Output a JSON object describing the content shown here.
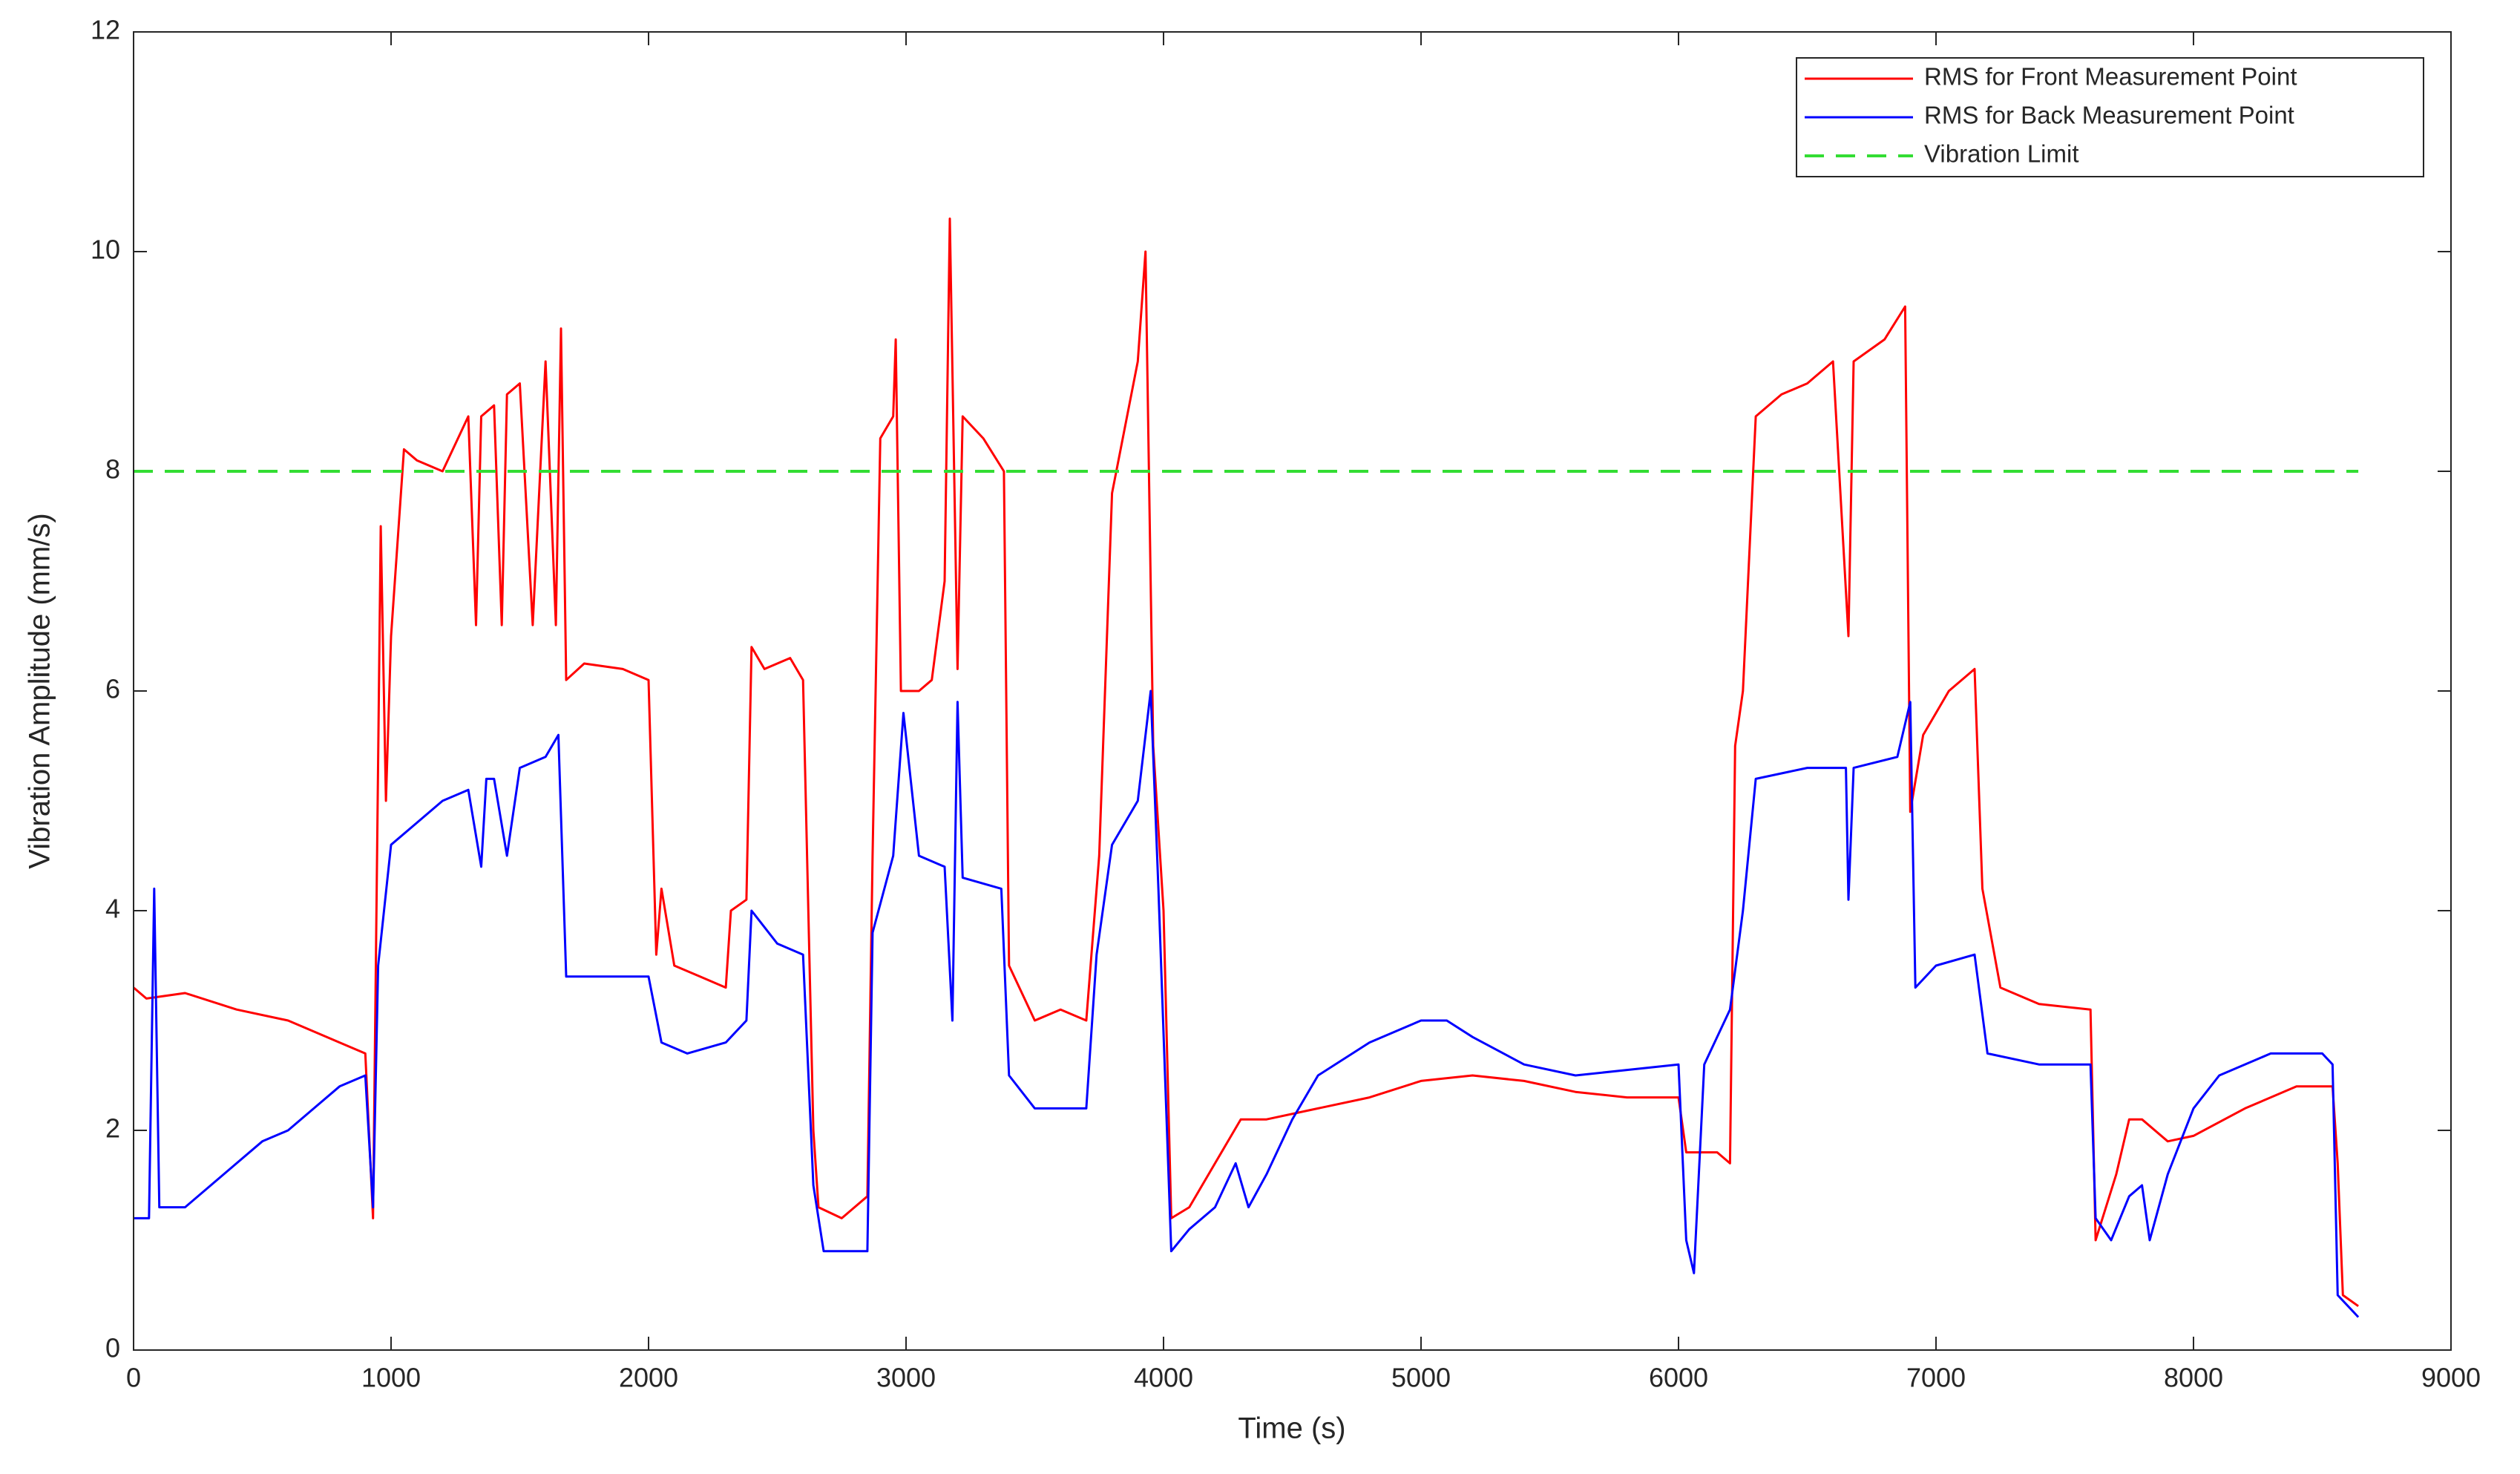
{
  "chart_data": {
    "type": "line",
    "xlabel": "Time (s)",
    "ylabel": "Vibration Amplitude (mm/s)",
    "xlim": [
      0,
      9000
    ],
    "xticks": [
      0,
      1000,
      2000,
      3000,
      4000,
      5000,
      6000,
      7000,
      8000,
      9000
    ],
    "ylim": [
      0,
      12
    ],
    "yticks": [
      0,
      2,
      4,
      6,
      8,
      10,
      12
    ],
    "grid": false,
    "legend": "upper right",
    "series": [
      {
        "name": "RMS for Front Measurement Point",
        "color": "#ff0000",
        "linestyle": "solid",
        "x": [
          0,
          50,
          200,
          400,
          600,
          800,
          900,
          930,
          960,
          980,
          1000,
          1050,
          1100,
          1200,
          1300,
          1330,
          1350,
          1400,
          1430,
          1450,
          1500,
          1550,
          1600,
          1640,
          1660,
          1680,
          1750,
          1900,
          2000,
          2030,
          2050,
          2100,
          2200,
          2300,
          2320,
          2380,
          2400,
          2450,
          2550,
          2600,
          2640,
          2660,
          2750,
          2850,
          2870,
          2900,
          2950,
          2960,
          2980,
          3050,
          3100,
          3150,
          3170,
          3200,
          3220,
          3300,
          3380,
          3400,
          3500,
          3600,
          3700,
          3750,
          3800,
          3900,
          3930,
          3960,
          4000,
          4030,
          4100,
          4200,
          4300,
          4400,
          4600,
          4800,
          5000,
          5200,
          5400,
          5600,
          5800,
          6000,
          6030,
          6150,
          6200,
          6220,
          6250,
          6300,
          6400,
          6500,
          6600,
          6660,
          6680,
          6800,
          6880,
          6900,
          6950,
          7050,
          7150,
          7180,
          7250,
          7400,
          7600,
          7620,
          7700,
          7750,
          7800,
          7900,
          8000,
          8200,
          8400,
          8500,
          8540,
          8560,
          8580,
          8640
        ],
        "values": [
          3.3,
          3.2,
          3.25,
          3.1,
          3.0,
          2.8,
          2.7,
          1.2,
          7.5,
          5.0,
          6.5,
          8.2,
          8.1,
          8.0,
          8.5,
          6.6,
          8.5,
          8.6,
          6.6,
          8.7,
          8.8,
          6.6,
          9.0,
          6.6,
          9.3,
          6.1,
          6.25,
          6.2,
          6.1,
          3.6,
          4.2,
          3.5,
          3.4,
          3.3,
          4.0,
          4.1,
          6.4,
          6.2,
          6.3,
          6.1,
          2.0,
          1.3,
          1.2,
          1.4,
          4.5,
          8.3,
          8.5,
          9.2,
          6.0,
          6.0,
          6.1,
          7.0,
          10.3,
          6.2,
          8.5,
          8.3,
          8.0,
          3.5,
          3.0,
          3.1,
          3.0,
          4.5,
          7.8,
          9.0,
          10.0,
          5.5,
          4.0,
          1.2,
          1.3,
          1.7,
          2.1,
          2.1,
          2.2,
          2.3,
          2.45,
          2.5,
          2.45,
          2.35,
          2.3,
          2.3,
          1.8,
          1.8,
          1.7,
          5.5,
          6.0,
          8.5,
          8.7,
          8.8,
          9.0,
          6.5,
          9.0,
          9.2,
          9.5,
          4.9,
          5.6,
          6.0,
          6.2,
          4.2,
          3.3,
          3.15,
          3.1,
          1.0,
          1.6,
          2.1,
          2.1,
          1.9,
          1.95,
          2.2,
          2.4,
          2.4,
          2.4,
          1.7,
          0.5,
          0.4
        ]
      },
      {
        "name": "RMS for Back Measurement Point",
        "color": "#0000ff",
        "linestyle": "solid",
        "x": [
          0,
          60,
          80,
          100,
          200,
          300,
          400,
          500,
          600,
          700,
          800,
          900,
          930,
          950,
          1000,
          1100,
          1200,
          1300,
          1350,
          1370,
          1400,
          1450,
          1500,
          1600,
          1650,
          1680,
          1800,
          2000,
          2050,
          2150,
          2300,
          2380,
          2400,
          2500,
          2600,
          2640,
          2680,
          2850,
          2870,
          2950,
          2990,
          3050,
          3150,
          3180,
          3200,
          3220,
          3370,
          3400,
          3500,
          3700,
          3740,
          3800,
          3900,
          3950,
          3980,
          4030,
          4100,
          4200,
          4280,
          4330,
          4400,
          4500,
          4600,
          4800,
          5000,
          5100,
          5200,
          5400,
          5600,
          5800,
          6000,
          6030,
          6060,
          6100,
          6200,
          6250,
          6300,
          6500,
          6650,
          6660,
          6680,
          6850,
          6900,
          6920,
          7000,
          7150,
          7200,
          7400,
          7600,
          7620,
          7680,
          7750,
          7800,
          7830,
          7900,
          8000,
          8100,
          8300,
          8500,
          8540,
          8560,
          8640
        ],
        "values": [
          1.2,
          1.2,
          4.2,
          1.3,
          1.3,
          1.5,
          1.7,
          1.9,
          2.0,
          2.2,
          2.4,
          2.5,
          1.3,
          3.5,
          4.6,
          4.8,
          5.0,
          5.1,
          4.4,
          5.2,
          5.2,
          4.5,
          5.3,
          5.4,
          5.6,
          3.4,
          3.4,
          3.4,
          2.8,
          2.7,
          2.8,
          3.0,
          4.0,
          3.7,
          3.6,
          1.5,
          0.9,
          0.9,
          3.8,
          4.5,
          5.8,
          4.5,
          4.4,
          3.0,
          5.9,
          4.3,
          4.2,
          2.5,
          2.2,
          2.2,
          3.6,
          4.6,
          5.0,
          6.0,
          4.2,
          0.9,
          1.1,
          1.3,
          1.7,
          1.3,
          1.6,
          2.1,
          2.5,
          2.8,
          3.0,
          3.0,
          2.85,
          2.6,
          2.5,
          2.55,
          2.6,
          1.0,
          0.7,
          2.6,
          3.1,
          4.0,
          5.2,
          5.3,
          5.3,
          4.1,
          5.3,
          5.4,
          5.9,
          3.3,
          3.5,
          3.6,
          2.7,
          2.6,
          2.6,
          1.2,
          1.0,
          1.4,
          1.5,
          1.0,
          1.6,
          2.2,
          2.5,
          2.7,
          2.7,
          2.6,
          0.5,
          0.3
        ]
      },
      {
        "name": "Vibration Limit",
        "color": "#33dd33",
        "linestyle": "dashed",
        "x": [
          0,
          8640
        ],
        "values": [
          8,
          8
        ]
      }
    ]
  }
}
